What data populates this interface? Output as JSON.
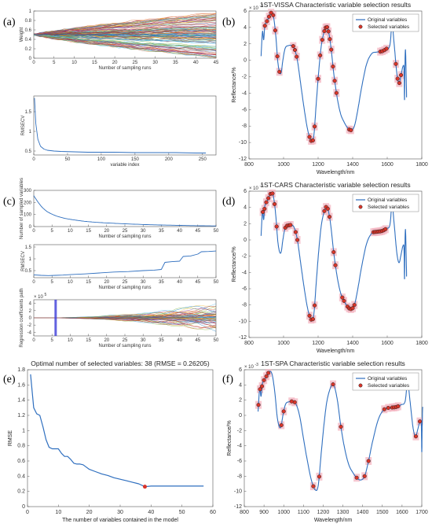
{
  "panel_labels": {
    "a": "(a)",
    "b": "(b)",
    "c": "(c)",
    "d": "(d)",
    "e": "(e)",
    "f": "(f)"
  },
  "colors": {
    "line": "#2f6fbf",
    "marker_face": "#d9352a",
    "marker_edge": "#222222",
    "highlight": "#f4b6c2",
    "band": "#3b3bd9"
  },
  "chart_data": [
    {
      "id": "a1",
      "type": "line",
      "title": "",
      "xlabel": "Number of sampling runs",
      "ylabel": "Weight",
      "xlim": [
        0,
        45
      ],
      "ylim": [
        0,
        1
      ],
      "xticks": [
        0,
        5,
        10,
        15,
        20,
        25,
        30,
        35,
        40,
        45
      ],
      "yticks": [
        0,
        0.2,
        0.4,
        0.6,
        0.8,
        1
      ],
      "ytick_labels": [
        "0",
        "0.2",
        "0.4",
        "0.6",
        "0.8",
        "1"
      ],
      "description_series": {
        "count": 120,
        "start_value": 0.5,
        "end_range": [
          0,
          1
        ]
      }
    },
    {
      "id": "a2",
      "type": "line",
      "xlabel": "variable index",
      "ylabel": "RMSECV",
      "xlim": [
        0,
        270
      ],
      "ylim": [
        0.4,
        1.9
      ],
      "xticks": [
        0,
        50,
        100,
        150,
        200,
        250
      ],
      "yticks": [
        0.5,
        1,
        1.5
      ],
      "x": [
        1,
        3,
        6,
        10,
        15,
        20,
        30,
        40,
        60,
        80,
        100,
        120,
        150,
        180,
        210,
        240,
        255
      ],
      "y": [
        1.85,
        1.2,
        0.8,
        0.62,
        0.55,
        0.52,
        0.5,
        0.49,
        0.48,
        0.47,
        0.47,
        0.47,
        0.46,
        0.46,
        0.46,
        0.45,
        0.45
      ]
    },
    {
      "id": "b",
      "type": "line",
      "title": "1ST-VISSA Characteristic variable selection results",
      "xlabel": "Wavelength/nm",
      "ylabel": "Reflectance/%",
      "exponent": "× 10",
      "exponent_power": "-3",
      "xlim": [
        800,
        1800
      ],
      "ylim": [
        -12,
        6
      ],
      "xticks": [
        800,
        1000,
        1200,
        1400,
        1600,
        1800
      ],
      "yticks": [
        -12,
        -10,
        -8,
        -6,
        -4,
        -2,
        0,
        2,
        4,
        6
      ],
      "legend": [
        "Original variables",
        "Selected variables"
      ],
      "legend_position": "top-right",
      "selected_x": [
        892,
        904,
        916,
        928,
        940,
        952,
        964,
        976,
        1056,
        1066,
        1076,
        1150,
        1160,
        1170,
        1180,
        1200,
        1212,
        1224,
        1236,
        1244,
        1252,
        1260,
        1268,
        1276,
        1286,
        1296,
        1306,
        1380,
        1390,
        1560,
        1572,
        1584,
        1596,
        1650,
        1660,
        1670,
        1680
      ]
    },
    {
      "id": "c1",
      "type": "line",
      "xlabel": "Number of sampling runs",
      "ylabel": "Number of sampled variables",
      "xlim": [
        0,
        50
      ],
      "ylim": [
        0,
        300
      ],
      "xticks": [
        0,
        5,
        10,
        15,
        20,
        25,
        30,
        35,
        40,
        45,
        50
      ],
      "yticks": [
        0,
        100,
        200,
        300
      ],
      "x": [
        0,
        1,
        2,
        3,
        4,
        6,
        8,
        10,
        13,
        16,
        20,
        25,
        30,
        35,
        40,
        45,
        50
      ],
      "y": [
        256,
        210,
        170,
        140,
        118,
        90,
        72,
        60,
        47,
        38,
        30,
        23,
        17,
        13,
        10,
        7,
        5
      ]
    },
    {
      "id": "c2",
      "type": "line",
      "xlabel": "Number of sampling runs",
      "ylabel": "RMSECV",
      "xlim": [
        0,
        50
      ],
      "ylim": [
        0.2,
        1.6
      ],
      "xticks": [
        0,
        5,
        10,
        15,
        20,
        25,
        30,
        35,
        40,
        45,
        50
      ],
      "yticks": [
        0.5,
        1,
        1.5
      ],
      "x": [
        0,
        2,
        4,
        6,
        8,
        10,
        14,
        18,
        22,
        26,
        30,
        33,
        35,
        36,
        38,
        40,
        41,
        43,
        45,
        46,
        48,
        50
      ],
      "y": [
        0.32,
        0.3,
        0.29,
        0.3,
        0.31,
        0.33,
        0.36,
        0.4,
        0.44,
        0.46,
        0.5,
        0.52,
        0.55,
        0.85,
        0.88,
        0.9,
        1.1,
        1.12,
        1.2,
        1.3,
        1.31,
        1.33
      ]
    },
    {
      "id": "c3",
      "type": "line",
      "xlabel": "Number of sampling runs",
      "ylabel": "Regression coefficients path",
      "exponent": "× 10",
      "exponent_power": "5",
      "xlim": [
        0,
        50
      ],
      "ylim": [
        -5,
        5
      ],
      "xticks": [
        0,
        5,
        10,
        15,
        20,
        25,
        30,
        35,
        40,
        45,
        50
      ],
      "yticks": [
        -4,
        -2,
        0,
        2,
        4
      ],
      "marker_x": 6
    },
    {
      "id": "d",
      "type": "line",
      "title": "1ST-CARS Characteristic variable selection results",
      "xlabel": "Wavelength/nm",
      "ylabel": "Reflectance/%",
      "exponent": "× 10",
      "exponent_power": "-3",
      "xlim": [
        800,
        1800
      ],
      "ylim": [
        -12,
        6
      ],
      "xticks": [
        800,
        1000,
        1200,
        1400,
        1600,
        1800
      ],
      "yticks": [
        -12,
        -10,
        -8,
        -6,
        -4,
        -2,
        0,
        2,
        4,
        6
      ],
      "legend": [
        "Original variables",
        "Selected variables"
      ],
      "legend_position": "top-right",
      "selected_x": [
        880,
        890,
        900,
        912,
        924,
        936,
        948,
        960,
        1010,
        1020,
        1030,
        1040,
        1070,
        1080,
        1150,
        1160,
        1170,
        1180,
        1236,
        1246,
        1256,
        1266,
        1290,
        1300,
        1340,
        1350,
        1370,
        1380,
        1390,
        1400,
        1410,
        1520,
        1530,
        1540,
        1550,
        1560,
        1570,
        1580,
        1590,
        1630
      ]
    },
    {
      "id": "e",
      "type": "line",
      "title": "Optimal number of selected variables: 38  (RMSE = 0.26205)",
      "xlabel": "The number of variables contained in the model",
      "ylabel": "RMSE",
      "xlim": [
        0,
        60
      ],
      "ylim": [
        0,
        1.8
      ],
      "xticks": [
        0,
        10,
        20,
        30,
        40,
        50,
        60
      ],
      "yticks": [
        0,
        0.2,
        0.4,
        0.6,
        0.8,
        1,
        1.2,
        1.4,
        1.6,
        1.8
      ],
      "ytick_labels": [
        "0",
        "0.2",
        "0.4",
        "0.6",
        "0.8",
        "1",
        "1.2",
        "1.4",
        "1.6",
        "1.8"
      ],
      "x": [
        1,
        2,
        3,
        4,
        5,
        6,
        7,
        8,
        9,
        10,
        11,
        12,
        13,
        14,
        15,
        16,
        17,
        18,
        19,
        20,
        22,
        24,
        26,
        28,
        30,
        32,
        34,
        36,
        38,
        40,
        45,
        50,
        55,
        57
      ],
      "y": [
        1.74,
        1.3,
        1.22,
        1.2,
        1.05,
        0.88,
        0.78,
        0.76,
        0.76,
        0.76,
        0.7,
        0.66,
        0.66,
        0.62,
        0.57,
        0.56,
        0.56,
        0.55,
        0.52,
        0.49,
        0.46,
        0.43,
        0.41,
        0.38,
        0.36,
        0.34,
        0.32,
        0.3,
        0.262,
        0.27,
        0.27,
        0.27,
        0.27,
        0.27
      ],
      "optimum_x": 38,
      "optimum_y": 0.262
    },
    {
      "id": "f",
      "type": "line",
      "title": "1ST-SPA Characteristic variable selection results",
      "xlabel": "Wavelength/nm",
      "ylabel": "Reflectance/%",
      "exponent": "× 10",
      "exponent_power": "-3",
      "xlim": [
        800,
        1700
      ],
      "ylim": [
        -12,
        6
      ],
      "xticks": [
        800,
        900,
        1000,
        1100,
        1200,
        1300,
        1400,
        1500,
        1600,
        1700
      ],
      "yticks": [
        -12,
        -10,
        -8,
        -6,
        -4,
        -2,
        0,
        2,
        4,
        6
      ],
      "legend": [
        "Original variables",
        "Selected variables"
      ],
      "legend_position": "top-right",
      "selected_x": [
        872,
        880,
        890,
        900,
        912,
        922,
        988,
        1000,
        1040,
        1056,
        1150,
        1180,
        1250,
        1290,
        1370,
        1410,
        1430,
        1510,
        1530,
        1550,
        1560,
        1570,
        1580,
        1670,
        1690
      ]
    }
  ]
}
